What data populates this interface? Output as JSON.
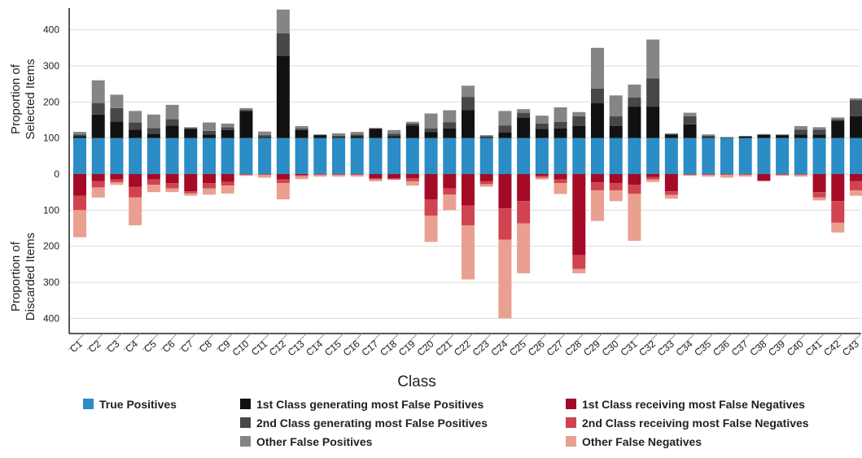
{
  "chart_data": {
    "type": "diverging-stacked-bar",
    "x_label": "Class",
    "y_label_top": [
      "Proportion of",
      "Selected Items"
    ],
    "y_label_bottom": [
      "Proportion of",
      "Discarded Items"
    ],
    "categories": [
      "C1",
      "C2",
      "C3",
      "C4",
      "C5",
      "C6",
      "C7",
      "C8",
      "C9",
      "C10",
      "C11",
      "C12",
      "C13",
      "C14",
      "C15",
      "C16",
      "C17",
      "C18",
      "C19",
      "C20",
      "C21",
      "C22",
      "C23",
      "C24",
      "C25",
      "C26",
      "C27",
      "C28",
      "C29",
      "C30",
      "C31",
      "C32",
      "C33",
      "C34",
      "C35",
      "C36",
      "C37",
      "C38",
      "C39",
      "C40",
      "C41",
      "C42",
      "C43"
    ],
    "ylim": [
      -442,
      460
    ],
    "yticks": [
      {
        "value": -400,
        "label": "400"
      },
      {
        "value": -300,
        "label": "300"
      },
      {
        "value": -200,
        "label": "200"
      },
      {
        "value": -100,
        "label": "100"
      },
      0,
      100,
      200,
      300,
      400
    ],
    "grid": true,
    "series": [
      {
        "name": "True Positives",
        "color": "#2b8cc6",
        "values": [
          100,
          100,
          100,
          100,
          100,
          100,
          100,
          100,
          100,
          100,
          100,
          100,
          100,
          100,
          100,
          100,
          100,
          100,
          100,
          100,
          100,
          100,
          100,
          100,
          100,
          100,
          100,
          100,
          100,
          100,
          100,
          100,
          100,
          100,
          100,
          100,
          100,
          100,
          100,
          100,
          100,
          100,
          100
        ]
      },
      {
        "name": "1st Class generating most False Positives",
        "color": "#111111",
        "values": [
          5,
          65,
          46,
          23,
          12,
          34,
          25,
          10,
          22,
          75,
          3,
          227,
          22,
          8,
          3,
          5,
          25,
          5,
          35,
          17,
          27,
          77,
          3,
          15,
          57,
          25,
          27,
          33,
          97,
          33,
          87,
          87,
          10,
          38,
          3,
          1,
          4,
          9,
          8,
          10,
          10,
          48,
          60
        ]
      },
      {
        "name": "2nd Class generating most False Positives",
        "color": "#474747",
        "values": [
          5,
          32,
          37,
          20,
          16,
          18,
          3,
          10,
          8,
          3,
          5,
          63,
          5,
          1,
          3,
          5,
          2,
          7,
          5,
          10,
          17,
          37,
          2,
          20,
          13,
          15,
          18,
          27,
          40,
          27,
          25,
          78,
          1,
          22,
          3,
          1,
          1,
          1,
          1,
          13,
          13,
          4,
          45
        ]
      },
      {
        "name": "Other False Positives",
        "color": "#858585",
        "values": [
          7,
          63,
          37,
          32,
          37,
          40,
          2,
          23,
          10,
          5,
          10,
          66,
          6,
          1,
          7,
          7,
          1,
          10,
          5,
          41,
          33,
          31,
          3,
          40,
          10,
          22,
          40,
          12,
          113,
          58,
          36,
          108,
          2,
          10,
          4,
          1,
          1,
          1,
          1,
          10,
          7,
          5,
          5
        ]
      },
      {
        "name": "1st Class receiving most False Negatives",
        "color": "#a50a26",
        "values": [
          -60,
          -20,
          -15,
          -35,
          -15,
          -25,
          -48,
          -25,
          -22,
          -1,
          -1,
          -15,
          -3,
          -1,
          -1,
          -1,
          -12,
          -12,
          -12,
          -70,
          -40,
          -87,
          -20,
          -95,
          -75,
          -5,
          -15,
          -225,
          -23,
          -25,
          -30,
          -8,
          -48,
          -1,
          -1,
          -1,
          -1,
          -18,
          -1,
          -1,
          -50,
          -75,
          -20
        ]
      },
      {
        "name": "2nd Class receiving most False Negatives",
        "color": "#d0444f",
        "values": [
          -40,
          -17,
          -8,
          -30,
          -15,
          -15,
          -5,
          -15,
          -10,
          -1,
          -1,
          -10,
          -3,
          -1,
          -1,
          -1,
          -3,
          -3,
          -8,
          -45,
          -17,
          -55,
          -8,
          -87,
          -62,
          -5,
          -10,
          -38,
          -22,
          -20,
          -25,
          -7,
          -10,
          -1,
          -1,
          -1,
          -1,
          -1,
          -1,
          -1,
          -15,
          -60,
          -25
        ]
      },
      {
        "name": "Other False Negatives",
        "color": "#e9a090",
        "values": [
          -75,
          -28,
          -7,
          -77,
          -20,
          -10,
          -7,
          -17,
          -22,
          -3,
          -8,
          -45,
          -8,
          -5,
          -5,
          -5,
          -5,
          -1,
          -12,
          -73,
          -43,
          -150,
          -7,
          -218,
          -138,
          -5,
          -30,
          -12,
          -85,
          -30,
          -130,
          -7,
          -10,
          -3,
          -5,
          -8,
          -5,
          -1,
          -3,
          -5,
          -8,
          -27,
          -15
        ]
      }
    ]
  }
}
